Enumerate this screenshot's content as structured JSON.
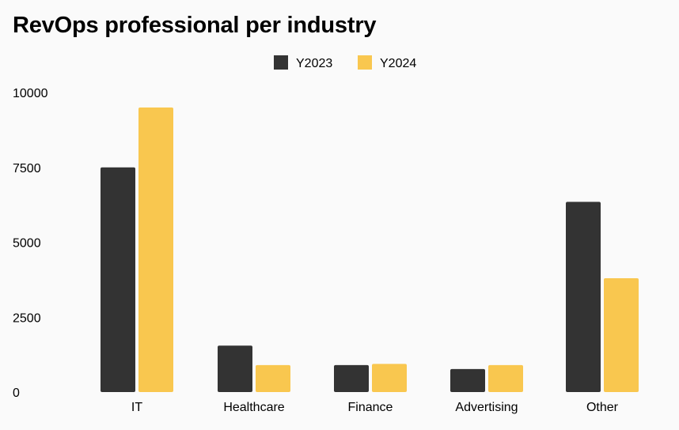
{
  "chart_data": {
    "type": "bar",
    "title": "RevOps professional per industry",
    "categories": [
      "IT",
      "Healthcare",
      "Finance",
      "Advertising",
      "Other"
    ],
    "series": [
      {
        "name": "Y2023",
        "color": "#333333",
        "values": [
          7500,
          1550,
          900,
          770,
          6350
        ]
      },
      {
        "name": "Y2024",
        "color": "#f9c74f",
        "values": [
          9500,
          900,
          940,
          900,
          3800
        ]
      }
    ],
    "ylim": [
      0,
      10000
    ],
    "yticks": [
      "0",
      "2500",
      "5000",
      "7500",
      "10000"
    ],
    "xlabel": "",
    "ylabel": "",
    "grid": false,
    "legend_position": "top-center"
  }
}
